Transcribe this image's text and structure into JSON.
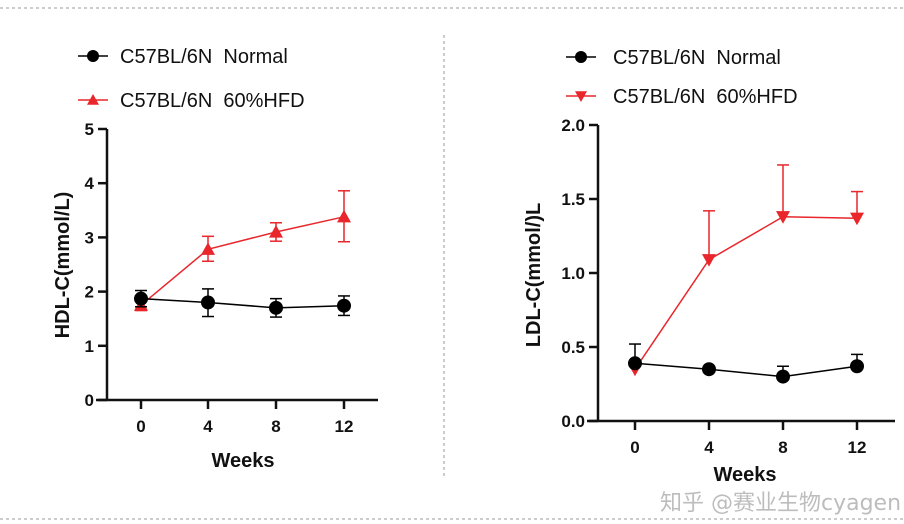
{
  "watermark": "知乎 @赛业生物cyagen",
  "colors": {
    "normal": "#000000",
    "hfd": "#e8262b"
  },
  "chart_data": [
    {
      "type": "line",
      "xlabel": "Weeks",
      "ylabel": "HDL-C(mmol/L)",
      "x": [
        0,
        4,
        8,
        12
      ],
      "xticks": [
        "0",
        "4",
        "8",
        "12"
      ],
      "yticks": [
        "0",
        "1",
        "2",
        "3",
        "4",
        "5"
      ],
      "ylim": [
        0,
        5
      ],
      "legend_position": "top",
      "series": [
        {
          "name": "C57BL/6N  Normal",
          "marker": "circle",
          "color": "#000000",
          "values": [
            1.87,
            1.8,
            1.7,
            1.74
          ],
          "err_up": [
            0.15,
            0.25,
            0.17,
            0.18
          ],
          "err_down": [
            0.15,
            0.26,
            0.17,
            0.18
          ]
        },
        {
          "name": "C57BL/6N  60%HFD",
          "marker": "triangle-up",
          "color": "#e8262b",
          "values": [
            1.75,
            2.78,
            3.1,
            3.38
          ],
          "err_up": [
            0.1,
            0.24,
            0.17,
            0.48
          ],
          "err_down": [
            0.1,
            0.22,
            0.17,
            0.46
          ]
        }
      ]
    },
    {
      "type": "line",
      "xlabel": "Weeks",
      "ylabel": "LDL-C(mmol/)L",
      "x": [
        0,
        4,
        8,
        12
      ],
      "xticks": [
        "0",
        "4",
        "8",
        "12"
      ],
      "yticks": [
        "0.0",
        "0.5",
        "1.0",
        "1.5",
        "2.0"
      ],
      "ylim": [
        0,
        2
      ],
      "legend_position": "top",
      "series": [
        {
          "name": "C57BL/6N  Normal",
          "marker": "circle",
          "color": "#000000",
          "values": [
            0.39,
            0.35,
            0.3,
            0.37
          ],
          "err_up": [
            0.13,
            0.0,
            0.07,
            0.08
          ],
          "err_down": [
            0,
            0,
            0,
            0
          ]
        },
        {
          "name": "C57BL/6N  60%HFD",
          "marker": "triangle-down",
          "color": "#e8262b",
          "values": [
            0.35,
            1.09,
            1.38,
            1.37
          ],
          "err_up": [
            0.0,
            0.33,
            0.35,
            0.18
          ],
          "err_down": [
            0,
            0,
            0,
            0
          ]
        }
      ]
    }
  ]
}
